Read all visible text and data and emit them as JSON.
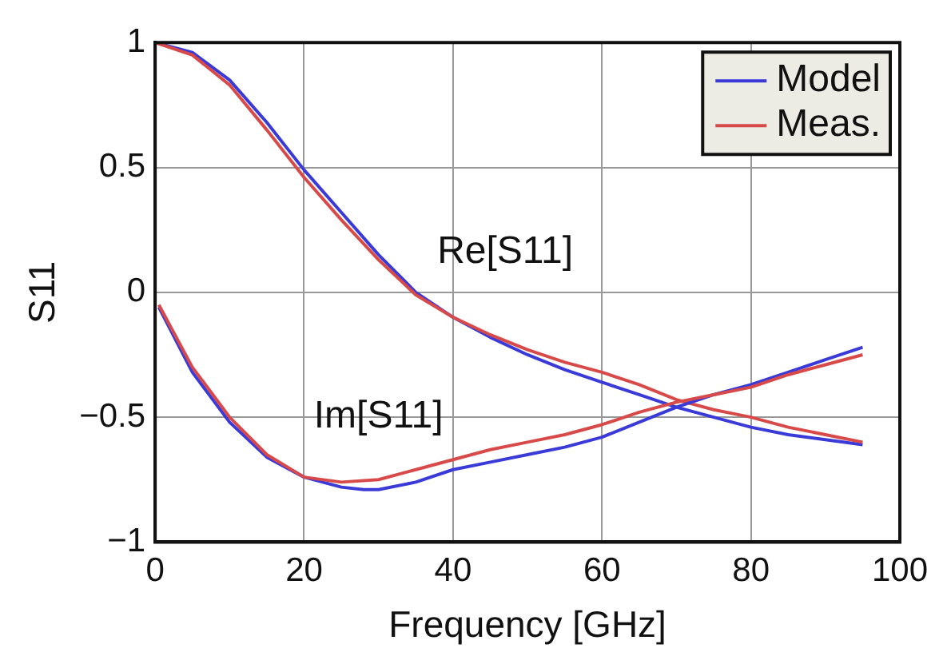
{
  "chart_data": {
    "type": "line",
    "xlabel": "Frequency [GHz]",
    "ylabel": "S11",
    "xlim": [
      0,
      100
    ],
    "ylim": [
      -1,
      1
    ],
    "xticks": [
      0,
      20,
      40,
      60,
      80,
      100
    ],
    "yticks": [
      {
        "value": -1,
        "label": "−1"
      },
      {
        "value": -0.5,
        "label": "−0.5"
      },
      0,
      0.5,
      1
    ],
    "grid": true,
    "legend": "top right",
    "marker": "none",
    "line_style": "solid",
    "annotations": [
      "Re[S11]",
      "Im[S11]"
    ],
    "series": [
      {
        "name": "Model",
        "color": "#3a3ad8",
        "x": [
          0,
          5,
          10,
          15,
          20,
          25,
          30,
          35,
          40,
          45,
          50,
          55,
          60,
          65,
          70,
          75,
          80,
          85,
          90,
          95
        ],
        "values": [
          1,
          0.96,
          0.85,
          0.68,
          0.49,
          0.32,
          0.15,
          0,
          -0.1,
          -0.18,
          -0.25,
          -0.31,
          -0.36,
          -0.41,
          -0.46,
          -0.5,
          -0.54,
          -0.57,
          -0.59,
          -0.61
        ]
      },
      {
        "name": "Meas.",
        "color": "#d84a4a",
        "x": [
          0,
          5,
          10,
          15,
          20,
          25,
          30,
          35,
          40,
          45,
          50,
          55,
          60,
          65,
          70,
          75,
          80,
          85,
          90,
          95
        ],
        "values": [
          1,
          0.95,
          0.83,
          0.65,
          0.46,
          0.29,
          0.13,
          -0.01,
          -0.1,
          -0.17,
          -0.23,
          -0.28,
          -0.32,
          -0.37,
          -0.43,
          -0.47,
          -0.5,
          -0.54,
          -0.57,
          -0.6
        ]
      },
      {
        "color": "#3a3ad8",
        "x": [
          0.5,
          5,
          10,
          15,
          20,
          25,
          28,
          30,
          35,
          40,
          45,
          50,
          55,
          60,
          65,
          70,
          75,
          80,
          85,
          90,
          95
        ],
        "values": [
          -0.06,
          -0.32,
          -0.52,
          -0.66,
          -0.74,
          -0.78,
          -0.79,
          -0.79,
          -0.76,
          -0.71,
          -0.68,
          -0.65,
          -0.62,
          -0.58,
          -0.52,
          -0.46,
          -0.41,
          -0.37,
          -0.32,
          -0.27,
          -0.22
        ]
      },
      {
        "color": "#d84a4a",
        "x": [
          0.5,
          5,
          10,
          15,
          20,
          25,
          30,
          35,
          40,
          45,
          50,
          55,
          60,
          65,
          70,
          75,
          80,
          85,
          90,
          95
        ],
        "values": [
          -0.05,
          -0.3,
          -0.5,
          -0.65,
          -0.74,
          -0.76,
          -0.75,
          -0.71,
          -0.67,
          -0.63,
          -0.6,
          -0.57,
          -0.53,
          -0.48,
          -0.44,
          -0.41,
          -0.38,
          -0.33,
          -0.29,
          -0.25
        ]
      }
    ]
  }
}
